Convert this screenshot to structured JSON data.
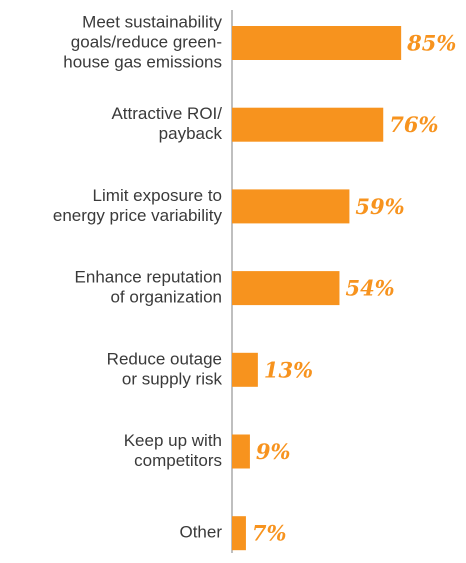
{
  "chart_data": {
    "type": "bar",
    "orientation": "horizontal",
    "categories": [
      [
        "Meet sustainability",
        "goals/reduce green-",
        "house gas emissions"
      ],
      [
        "Attractive ROI/",
        "payback"
      ],
      [
        "Limit exposure to",
        "energy price variability"
      ],
      [
        "Enhance reputation",
        "of organization"
      ],
      [
        "Reduce outage",
        "or supply risk"
      ],
      [
        "Keep up with",
        "competitors"
      ],
      [
        "Other"
      ]
    ],
    "values": [
      85,
      76,
      59,
      54,
      13,
      9,
      7
    ],
    "value_labels": [
      "85%",
      "76%",
      "59%",
      "54%",
      "13%",
      "9%",
      "7%"
    ],
    "color": "#f7931e",
    "xlim": [
      0,
      100
    ]
  }
}
